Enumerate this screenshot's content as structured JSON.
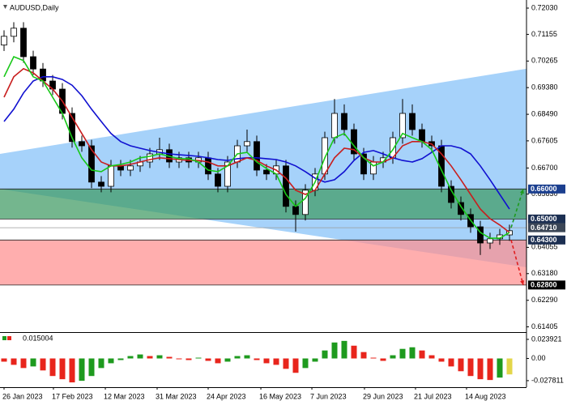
{
  "chart_data": {
    "type": "candlestick",
    "title": "AUDUSD,Daily",
    "xlim": [
      -0.4167,
      53.75
    ],
    "xticks": [
      {
        "value": 0,
        "label": "26 Jan 2023"
      },
      {
        "value": 5.08,
        "label": "17 Feb 2023"
      },
      {
        "value": 10.42,
        "label": "12 Mar 2023"
      },
      {
        "value": 15.75,
        "label": "31 Mar 2023"
      },
      {
        "value": 21,
        "label": "24 Apr 2023"
      },
      {
        "value": 26.42,
        "label": "16 May 2023"
      },
      {
        "value": 31.67,
        "label": "7 Jun 2023"
      },
      {
        "value": 37.08,
        "label": "29 Jun 2023"
      },
      {
        "value": 42.33,
        "label": "21 Jul 2023"
      },
      {
        "value": 47.58,
        "label": "14 Aug 2023"
      }
    ],
    "ylim": [
      0.6123,
      0.723
    ],
    "yticks": [
      {
        "value": 0.7203,
        "label": "0.72030"
      },
      {
        "value": 0.71155,
        "label": "0.71155"
      },
      {
        "value": 0.70265,
        "label": "0.70265"
      },
      {
        "value": 0.6938,
        "label": "0.69380"
      },
      {
        "value": 0.6849,
        "label": "0.68490"
      },
      {
        "value": 0.67605,
        "label": "0.67605"
      },
      {
        "value": 0.667,
        "label": "0.66700"
      },
      {
        "value": 0.6583,
        "label": "0.65830"
      },
      {
        "value": 0.64055,
        "label": "0.64055"
      },
      {
        "value": 0.6318,
        "label": "0.63180"
      },
      {
        "value": 0.6229,
        "label": "0.62290"
      },
      {
        "value": 0.61405,
        "label": "0.61405"
      }
    ],
    "open": [
      0.708,
      0.7109,
      0.7136,
      0.7041,
      0.7,
      0.696,
      0.6933,
      0.6852,
      0.6758,
      0.6744,
      0.6623,
      0.6609,
      0.6677,
      0.6663,
      0.6677,
      0.669,
      0.6717,
      0.6731,
      0.669,
      0.6704,
      0.669,
      0.6704,
      0.665,
      0.6609,
      0.669,
      0.6744,
      0.6758,
      0.6663,
      0.665,
      0.6677,
      0.6542,
      0.6515,
      0.6596,
      0.665,
      0.6771,
      0.6852,
      0.6798,
      0.6717,
      0.665,
      0.669,
      0.6704,
      0.6771,
      0.6852,
      0.6798,
      0.6758,
      0.6744,
      0.6609,
      0.6555,
      0.6515,
      0.6474,
      0.642,
      0.6434,
      0.6447
    ],
    "high": [
      0.7129,
      0.7156,
      0.7156,
      0.7061,
      0.702,
      0.698,
      0.6953,
      0.6872,
      0.6778,
      0.6764,
      0.6643,
      0.6697,
      0.6697,
      0.6697,
      0.671,
      0.6737,
      0.6771,
      0.6751,
      0.6724,
      0.6724,
      0.6724,
      0.6724,
      0.667,
      0.671,
      0.6764,
      0.6798,
      0.6778,
      0.6683,
      0.6697,
      0.6697,
      0.6562,
      0.6616,
      0.667,
      0.6791,
      0.69,
      0.6882,
      0.6818,
      0.6737,
      0.671,
      0.6724,
      0.6791,
      0.69,
      0.6882,
      0.6818,
      0.6778,
      0.6764,
      0.6629,
      0.6575,
      0.6535,
      0.6494,
      0.6454,
      0.6467,
      0.6481
    ],
    "low": [
      0.706,
      0.7089,
      0.7021,
      0.698,
      0.694,
      0.6913,
      0.6832,
      0.6738,
      0.6724,
      0.6603,
      0.6589,
      0.6589,
      0.6643,
      0.6643,
      0.6657,
      0.667,
      0.6697,
      0.667,
      0.667,
      0.667,
      0.667,
      0.663,
      0.6589,
      0.6589,
      0.667,
      0.6724,
      0.6643,
      0.663,
      0.663,
      0.6522,
      0.6458,
      0.6495,
      0.6576,
      0.663,
      0.6751,
      0.6778,
      0.6697,
      0.663,
      0.663,
      0.667,
      0.6684,
      0.6751,
      0.6778,
      0.6738,
      0.6724,
      0.6589,
      0.6535,
      0.6495,
      0.6454,
      0.638,
      0.64,
      0.6414,
      0.6427
    ],
    "close": [
      0.7109,
      0.7136,
      0.7041,
      0.7,
      0.696,
      0.6933,
      0.6852,
      0.6758,
      0.6744,
      0.6623,
      0.6609,
      0.6677,
      0.6663,
      0.6677,
      0.669,
      0.6717,
      0.6731,
      0.669,
      0.6704,
      0.669,
      0.6704,
      0.665,
      0.6609,
      0.669,
      0.6744,
      0.6758,
      0.6663,
      0.665,
      0.6677,
      0.6542,
      0.6515,
      0.6596,
      0.665,
      0.6771,
      0.6852,
      0.6798,
      0.6717,
      0.665,
      0.669,
      0.6704,
      0.6771,
      0.6852,
      0.6798,
      0.6758,
      0.6744,
      0.6609,
      0.6555,
      0.6515,
      0.6474,
      0.642,
      0.6434,
      0.6447,
      0.6461
    ],
    "up_color": "#ffffff",
    "down_color": "#000000",
    "series": [
      {
        "color": "#1010d0",
        "values": [
          0.6825,
          0.6866,
          0.692,
          0.696,
          0.6974,
          0.6974,
          0.6965,
          0.6946,
          0.6911,
          0.6866,
          0.6825,
          0.6785,
          0.6758,
          0.6744,
          0.6736,
          0.6728,
          0.6722,
          0.6717,
          0.6714,
          0.6712,
          0.6709,
          0.6704,
          0.6698,
          0.6695,
          0.6701,
          0.6704,
          0.6704,
          0.6701,
          0.6698,
          0.669,
          0.6677,
          0.6658,
          0.6636,
          0.6623,
          0.6631,
          0.6658,
          0.6695,
          0.6722,
          0.6728,
          0.6717,
          0.6704,
          0.6695,
          0.669,
          0.6701,
          0.6722,
          0.6744,
          0.6744,
          0.6736,
          0.6717,
          0.6677,
          0.6631,
          0.6582,
          0.6533
        ]
      },
      {
        "color": "#c81e1e",
        "values": [
          0.6906,
          0.6974,
          0.7001,
          0.6987,
          0.696,
          0.6933,
          0.6893,
          0.6839,
          0.6785,
          0.6731,
          0.669,
          0.6677,
          0.6677,
          0.6682,
          0.669,
          0.6698,
          0.6704,
          0.6701,
          0.6698,
          0.6695,
          0.6695,
          0.669,
          0.6677,
          0.6677,
          0.669,
          0.6704,
          0.6695,
          0.6677,
          0.6663,
          0.6636,
          0.6596,
          0.6582,
          0.6596,
          0.665,
          0.6704,
          0.6736,
          0.6731,
          0.6704,
          0.669,
          0.669,
          0.6704,
          0.6744,
          0.6758,
          0.6758,
          0.675,
          0.6717,
          0.6677,
          0.6631,
          0.6582,
          0.6533,
          0.6501,
          0.648,
          0.6455
        ]
      },
      {
        "color": "#18c818",
        "values": [
          0.6974,
          0.7041,
          0.7028,
          0.6974,
          0.696,
          0.6906,
          0.6852,
          0.6771,
          0.6704,
          0.6663,
          0.6658,
          0.6677,
          0.6682,
          0.669,
          0.6704,
          0.6709,
          0.6717,
          0.6709,
          0.6701,
          0.6701,
          0.669,
          0.6663,
          0.6658,
          0.6677,
          0.6717,
          0.6722,
          0.669,
          0.6668,
          0.665,
          0.6582,
          0.6542,
          0.6569,
          0.6623,
          0.6704,
          0.6771,
          0.6785,
          0.6744,
          0.6704,
          0.6677,
          0.669,
          0.6731,
          0.6785,
          0.6771,
          0.6758,
          0.6731,
          0.6663,
          0.6596,
          0.6542,
          0.6496,
          0.6455,
          0.6436,
          0.6436,
          0.6455
        ]
      }
    ],
    "channel": {
      "color": "#a6d2fa",
      "upper": [
        0.6717,
        0.7001
      ],
      "lower": [
        0.66,
        0.6339
      ]
    },
    "zones": [
      {
        "from": 0.66,
        "to": 0.65,
        "color": "#3f9a62"
      },
      {
        "from": 0.643,
        "to": 0.628,
        "color": "#ff8f8f"
      }
    ],
    "levels": [
      {
        "value": 0.66,
        "label": "0.66000",
        "color": "#1b3f8f"
      },
      {
        "value": 0.65,
        "label": "0.65000",
        "color": "#1c2f52"
      },
      {
        "value": 0.6471,
        "label": "0.64710",
        "color": "#3b4656"
      },
      {
        "value": 0.643,
        "label": "0.64300",
        "color": "#1c2f52"
      },
      {
        "value": 0.628,
        "label": "0.62800",
        "color": "#000000"
      }
    ],
    "forecast": [
      {
        "from": 0.6471,
        "to": 0.66,
        "color": "#1e9a1e"
      },
      {
        "from": 0.643,
        "to": 0.628,
        "color": "#e01e1e"
      }
    ],
    "oscillator": {
      "label": "0.015004",
      "ylim": [
        -0.036,
        0.032
      ],
      "yticks": [
        0.023921,
        {
          "value": 0,
          "label": "0.00"
        },
        -0.027811
      ],
      "up_color": "#1e9a1e",
      "down_color": "#e8251c",
      "last_color": "#e3d64a",
      "values": [
        -0.004,
        -0.008,
        -0.012,
        -0.01,
        -0.015,
        -0.022,
        -0.026,
        -0.03,
        -0.028,
        -0.022,
        -0.012,
        -0.006,
        -0.002,
        0.003,
        0.005,
        0.003,
        0.004,
        0.002,
        -0.001,
        -0.002,
        0.001,
        -0.003,
        -0.006,
        -0.004,
        0.003,
        0.004,
        -0.002,
        -0.006,
        -0.008,
        -0.013,
        -0.018,
        -0.012,
        -0.004,
        0.01,
        0.02,
        0.022,
        0.016,
        0.008,
        0.001,
        -0.003,
        0.004,
        0.012,
        0.014,
        0.01,
        0.004,
        -0.004,
        -0.01,
        -0.016,
        -0.022,
        -0.026,
        -0.027,
        -0.024,
        -0.02
      ]
    }
  }
}
